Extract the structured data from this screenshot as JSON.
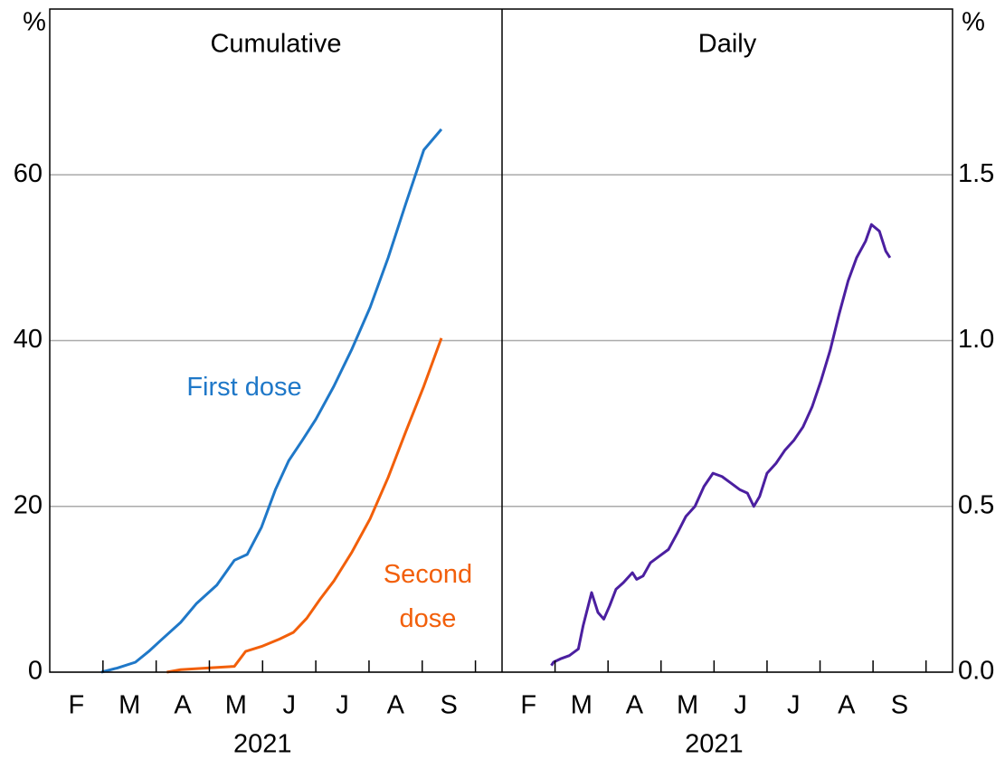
{
  "chart_data": [
    {
      "type": "line",
      "title": "Cumulative",
      "y_unit": "%",
      "year": "2021",
      "months": [
        "F",
        "M",
        "A",
        "M",
        "J",
        "J",
        "A",
        "S"
      ],
      "xlim": [
        2,
        10.5
      ],
      "xticks": [
        3,
        4,
        5,
        6,
        7,
        8,
        9,
        10
      ],
      "ylim": [
        0,
        80
      ],
      "yticks": [
        0,
        20,
        40,
        60
      ],
      "grid": true,
      "series": [
        {
          "name": "First dose",
          "color": "#1f78c8",
          "x": [
            2.97,
            3.27,
            3.61,
            3.86,
            4.08,
            4.46,
            4.76,
            5.14,
            5.47,
            5.71,
            5.98,
            6.24,
            6.49,
            6.75,
            7.0,
            7.34,
            7.68,
            8.02,
            8.36,
            8.69,
            9.03,
            9.36
          ],
          "values": [
            0,
            0.5,
            1.2,
            2.5,
            3.8,
            6,
            8.3,
            10.5,
            13.5,
            14.2,
            17.5,
            22,
            25.5,
            28,
            30.5,
            34.5,
            39,
            44,
            50,
            56.5,
            63,
            65.5
          ]
        },
        {
          "name": "Second dose",
          "color": "#f25f0a",
          "x": [
            4.2,
            4.46,
            4.97,
            5.47,
            5.68,
            5.98,
            6.32,
            6.58,
            6.83,
            7.08,
            7.34,
            7.68,
            8.02,
            8.36,
            8.69,
            9.03,
            9.36
          ],
          "values": [
            0,
            0.3,
            0.5,
            0.7,
            2.5,
            3.1,
            4,
            4.8,
            6.5,
            8.8,
            11,
            14.5,
            18.5,
            23.5,
            29,
            34.5,
            40.3
          ]
        }
      ]
    },
    {
      "type": "line",
      "title": "Daily",
      "y_unit": "%",
      "year": "2021",
      "months": [
        "F",
        "M",
        "A",
        "M",
        "J",
        "J",
        "A",
        "S"
      ],
      "xlim": [
        2,
        10.5
      ],
      "xticks": [
        3,
        4,
        5,
        6,
        7,
        8,
        9,
        10
      ],
      "ylim": [
        0,
        2
      ],
      "yticks": [
        {
          "value": 0,
          "label": "0.0"
        },
        0.5,
        {
          "value": 1,
          "label": "1.0"
        },
        1.5
      ],
      "grid": true,
      "series": [
        {
          "color": "#4b1fa0",
          "x": [
            2.93,
            2.97,
            3.1,
            3.27,
            3.44,
            3.53,
            3.69,
            3.81,
            3.92,
            4.03,
            4.15,
            4.29,
            4.46,
            4.54,
            4.66,
            4.8,
            4.97,
            5.14,
            5.31,
            5.47,
            5.64,
            5.81,
            5.98,
            6.15,
            6.32,
            6.49,
            6.63,
            6.75,
            6.86,
            7.0,
            7.17,
            7.34,
            7.51,
            7.68,
            7.85,
            8.02,
            8.19,
            8.36,
            8.53,
            8.69,
            8.86,
            8.97,
            9.12,
            9.24,
            9.32
          ],
          "values": [
            0.02,
            0.03,
            0.04,
            0.05,
            0.07,
            0.14,
            0.24,
            0.18,
            0.16,
            0.2,
            0.25,
            0.27,
            0.3,
            0.28,
            0.29,
            0.33,
            0.35,
            0.37,
            0.42,
            0.47,
            0.5,
            0.56,
            0.6,
            0.59,
            0.57,
            0.55,
            0.54,
            0.5,
            0.53,
            0.6,
            0.63,
            0.67,
            0.7,
            0.74,
            0.8,
            0.88,
            0.97,
            1.08,
            1.18,
            1.25,
            1.3,
            1.35,
            1.33,
            1.27,
            1.25
          ]
        }
      ]
    }
  ]
}
